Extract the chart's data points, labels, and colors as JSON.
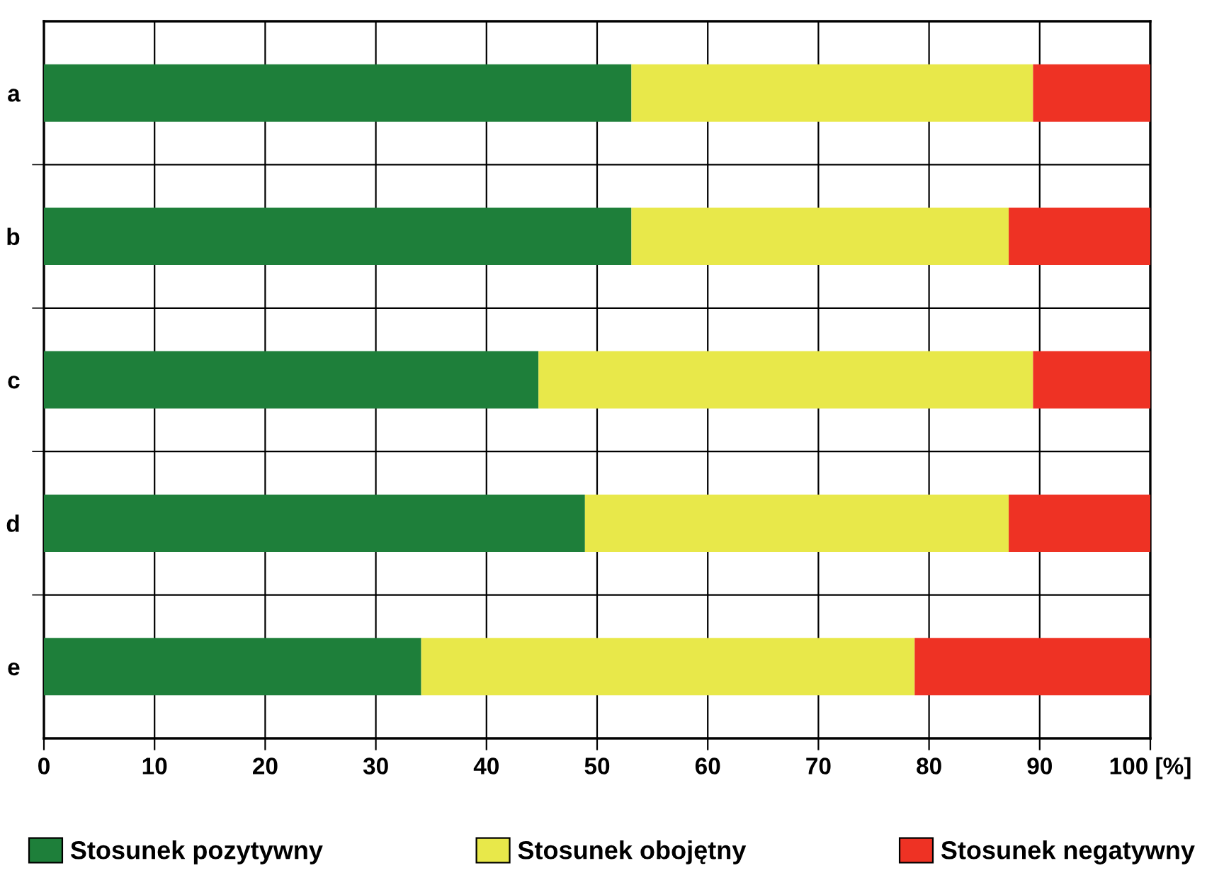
{
  "chart_data": {
    "type": "bar",
    "orientation": "horizontal",
    "stacked": true,
    "categories": [
      "a",
      "b",
      "c",
      "d",
      "e"
    ],
    "series": [
      {
        "name": "Stosunek pozytywny",
        "color": "#1e7f3a",
        "values": [
          53.1,
          53.1,
          44.7,
          48.9,
          34.1
        ]
      },
      {
        "name": "Stosunek obojętny",
        "color": "#e8e84a",
        "values": [
          36.3,
          34.1,
          44.7,
          38.3,
          44.6
        ]
      },
      {
        "name": "Stosunek negatywny",
        "color": "#ee3224",
        "values": [
          10.6,
          12.8,
          10.6,
          12.8,
          21.3
        ]
      }
    ],
    "xlim": [
      0,
      100
    ],
    "xticks": [
      0,
      10,
      20,
      30,
      40,
      50,
      60,
      70,
      80,
      90,
      {
        "value": 100,
        "label": "100 [%]"
      }
    ],
    "grid": true,
    "legend": "bottom"
  }
}
